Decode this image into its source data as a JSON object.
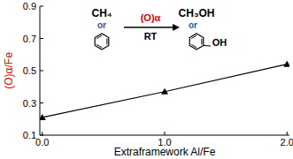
{
  "chart_data": {
    "type": "line",
    "x_label": "Extraframework Al/Fe",
    "y_label": "(O)α/Fe",
    "x": [
      0,
      1,
      2
    ],
    "series": [
      {
        "name": null,
        "color": "#000000",
        "marker": "triangle",
        "line_style": "solid",
        "values": [
          0.21,
          0.37,
          0.54
        ]
      }
    ],
    "xlim": [
      -0.02,
      2.02
    ],
    "xticks": [
      {
        "value": 0,
        "label": "0.0"
      },
      {
        "value": 1,
        "label": "1.0"
      },
      {
        "value": 2,
        "label": "2.0"
      }
    ],
    "ylim": [
      0.1,
      0.9
    ],
    "yticks": [
      0.1,
      0.3,
      0.5,
      0.7,
      0.9
    ],
    "grid": false,
    "annotations": [
      "CH₄",
      "or",
      "(O)α",
      "RT",
      "CH₃OH",
      "or",
      "OH"
    ]
  }
}
